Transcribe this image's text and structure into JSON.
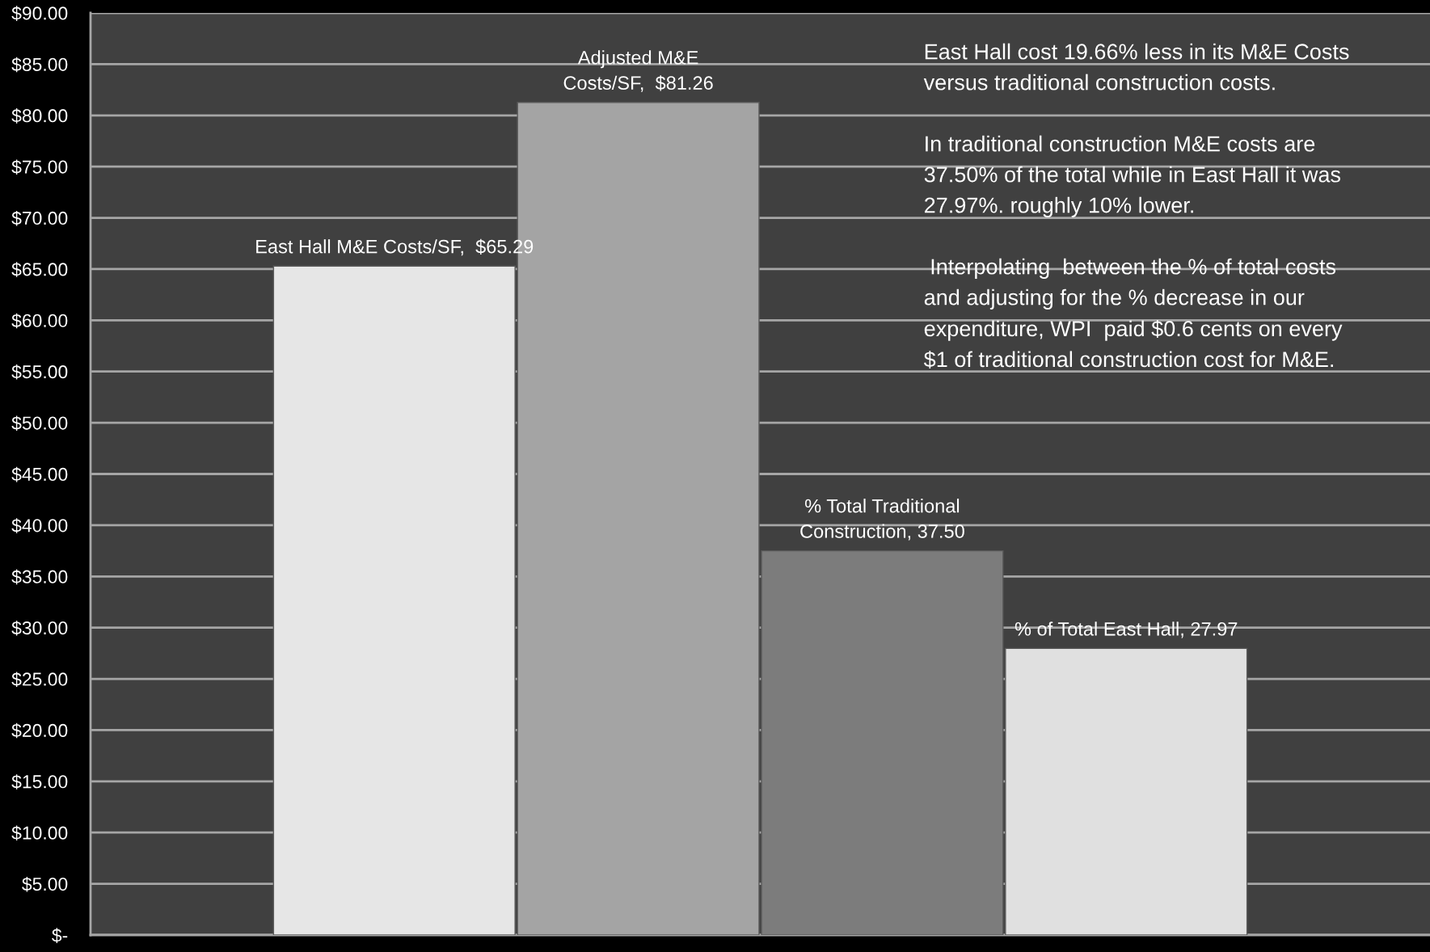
{
  "chart_data": {
    "type": "bar",
    "categories": [
      null,
      null,
      null,
      null
    ],
    "values": [
      65.29,
      81.26,
      37.5,
      27.97
    ],
    "colors": [
      "#e6e6e6",
      "#a4a4a4",
      "#7c7c7c",
      "#e0e0e0"
    ],
    "value_labels": [
      "East Hall M&E Costs/SF,  $65.29",
      "Adjusted M&E\nCosts/SF,  $81.26",
      "% Total Traditional\nConstruction, 37.50",
      "% of Total East Hall, 27.97"
    ],
    "ylim": [
      0,
      90
    ],
    "yticks": [
      {
        "value": 0,
        "label": "$-"
      },
      {
        "value": 5,
        "label": "$5.00"
      },
      {
        "value": 10,
        "label": "$10.00"
      },
      {
        "value": 15,
        "label": "$15.00"
      },
      {
        "value": 20,
        "label": "$20.00"
      },
      {
        "value": 25,
        "label": "$25.00"
      },
      {
        "value": 30,
        "label": "$30.00"
      },
      {
        "value": 35,
        "label": "$35.00"
      },
      {
        "value": 40,
        "label": "$40.00"
      },
      {
        "value": 45,
        "label": "$45.00"
      },
      {
        "value": 50,
        "label": "$50.00"
      },
      {
        "value": 55,
        "label": "$55.00"
      },
      {
        "value": 60,
        "label": "$60.00"
      },
      {
        "value": 65,
        "label": "$65.00"
      },
      {
        "value": 70,
        "label": "$70.00"
      },
      {
        "value": 75,
        "label": "$75.00"
      },
      {
        "value": 80,
        "label": "$80.00"
      },
      {
        "value": 85,
        "label": "$85.00"
      },
      {
        "value": 90,
        "label": "$90.00"
      }
    ],
    "grid": "y",
    "legend": false,
    "tick_labels": "y",
    "annotations": [
      "East Hall cost 19.66% less in its M&E Costs\nversus traditional construction costs.",
      "In traditional construction M&E costs are\n37.50% of the total while in East Hall it was\n27.97%. roughly 10% lower.",
      " Interpolating  between the % of total costs\nand adjusting for the % decrease in our\nexpenditure, WPI  paid $0.6 cents on every\n$1 of traditional construction cost for M&E."
    ]
  }
}
